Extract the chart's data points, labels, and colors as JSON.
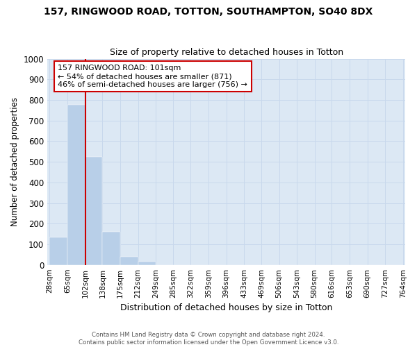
{
  "title": "157, RINGWOOD ROAD, TOTTON, SOUTHAMPTON, SO40 8DX",
  "subtitle": "Size of property relative to detached houses in Totton",
  "xlabel": "Distribution of detached houses by size in Totton",
  "ylabel": "Number of detached properties",
  "footer_line1": "Contains HM Land Registry data © Crown copyright and database right 2024.",
  "footer_line2": "Contains public sector information licensed under the Open Government Licence v3.0.",
  "bar_edges": [
    28,
    65,
    102,
    138,
    175,
    212,
    249,
    285,
    322,
    359,
    396,
    433,
    469,
    506,
    543,
    580,
    616,
    653,
    690,
    727,
    764
  ],
  "bar_heights": [
    135,
    775,
    525,
    160,
    40,
    15,
    0,
    0,
    0,
    0,
    0,
    0,
    0,
    0,
    0,
    0,
    0,
    0,
    0,
    0
  ],
  "bar_color": "#b8cfe8",
  "bar_edge_color": "#b8cfe8",
  "grid_color": "#c8d8ec",
  "background_color": "#dce8f4",
  "property_line_x": 102,
  "property_line_color": "#cc0000",
  "annotation_text": "157 RINGWOOD ROAD: 101sqm\n← 54% of detached houses are smaller (871)\n46% of semi-detached houses are larger (756) →",
  "annotation_box_color": "#cc0000",
  "ylim": [
    0,
    1000
  ],
  "yticks": [
    0,
    100,
    200,
    300,
    400,
    500,
    600,
    700,
    800,
    900,
    1000
  ]
}
